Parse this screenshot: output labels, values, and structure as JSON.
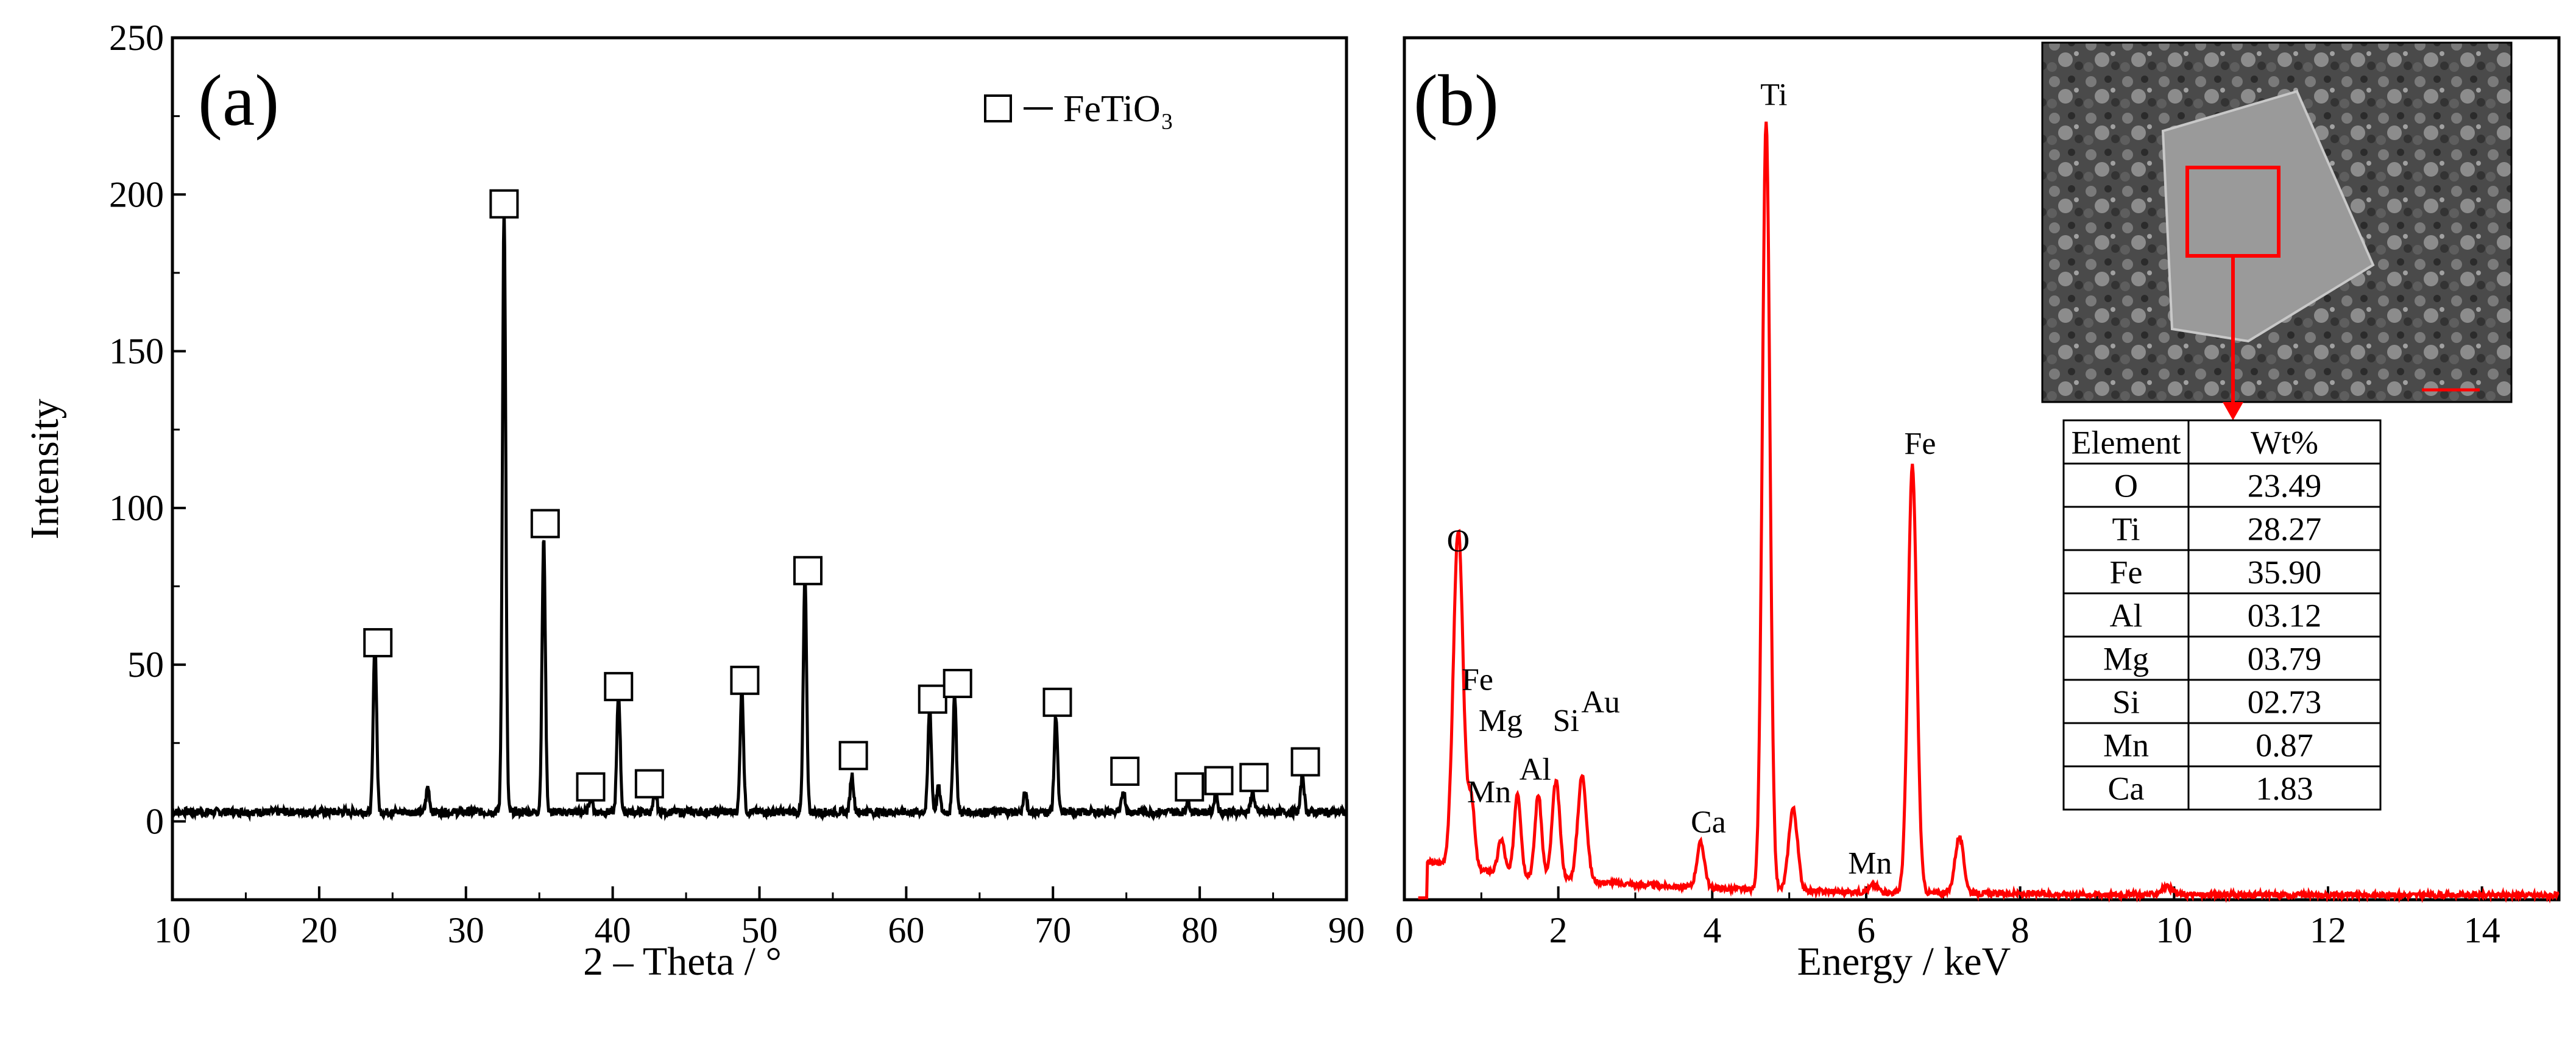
{
  "chart_data": [
    {
      "type": "line",
      "panel_label": "(a)",
      "xlabel": "2 – Theta / °",
      "ylabel": "Intensity",
      "xlim": [
        10,
        90
      ],
      "ylim": [
        -25,
        250
      ],
      "xticks": [
        "10",
        "20",
        "30",
        "40",
        "50",
        "60",
        "70",
        "80",
        "90"
      ],
      "yticks": [
        "0",
        "50",
        "100",
        "150",
        "200",
        "250"
      ],
      "legend": {
        "position": "top-right",
        "entries": [
          {
            "marker": "open-square",
            "label": "FeTiO₃"
          }
        ]
      },
      "baseline": 3,
      "peaks": [
        {
          "x": 23.8,
          "y": 55
        },
        {
          "x": 27.4,
          "y": 8
        },
        {
          "x": 32.6,
          "y": 193
        },
        {
          "x": 35.3,
          "y": 87
        },
        {
          "x": 38.5,
          "y": 5
        },
        {
          "x": 40.4,
          "y": 38
        },
        {
          "x": 42.9,
          "y": 6
        },
        {
          "x": 48.8,
          "y": 40
        },
        {
          "x": 53.1,
          "y": 75
        },
        {
          "x": 56.3,
          "y": 12
        },
        {
          "x": 61.6,
          "y": 34
        },
        {
          "x": 62.2,
          "y": 8
        },
        {
          "x": 63.3,
          "y": 38
        },
        {
          "x": 68.1,
          "y": 6
        },
        {
          "x": 70.2,
          "y": 31
        },
        {
          "x": 74.8,
          "y": 7
        },
        {
          "x": 79.2,
          "y": 4
        },
        {
          "x": 81.1,
          "y": 6
        },
        {
          "x": 83.6,
          "y": 7
        },
        {
          "x": 87.0,
          "y": 12
        }
      ],
      "markers": [
        {
          "x": 24.0,
          "y": 57
        },
        {
          "x": 32.6,
          "y": 197
        },
        {
          "x": 35.4,
          "y": 95
        },
        {
          "x": 38.5,
          "y": 11
        },
        {
          "x": 40.4,
          "y": 43
        },
        {
          "x": 42.5,
          "y": 12
        },
        {
          "x": 49.0,
          "y": 45
        },
        {
          "x": 53.3,
          "y": 80
        },
        {
          "x": 56.4,
          "y": 21
        },
        {
          "x": 61.8,
          "y": 39
        },
        {
          "x": 63.5,
          "y": 44
        },
        {
          "x": 70.3,
          "y": 38
        },
        {
          "x": 74.9,
          "y": 16
        },
        {
          "x": 79.3,
          "y": 11
        },
        {
          "x": 81.3,
          "y": 13
        },
        {
          "x": 83.7,
          "y": 14
        },
        {
          "x": 87.2,
          "y": 19
        }
      ]
    },
    {
      "type": "line",
      "panel_label": "(b)",
      "xlabel": "Energy / keV",
      "xlim": [
        0,
        15
      ],
      "ylim": [
        0,
        230
      ],
      "xticks": [
        "0",
        "2",
        "4",
        "6",
        "8",
        "10",
        "12",
        "14"
      ],
      "line_color": "#ff0000",
      "peaks": [
        {
          "x": 0.7,
          "y": 90,
          "w": 0.09
        },
        {
          "x": 0.87,
          "y": 18,
          "w": 0.06
        },
        {
          "x": 1.26,
          "y": 9,
          "w": 0.06
        },
        {
          "x": 1.47,
          "y": 22,
          "w": 0.06
        },
        {
          "x": 1.74,
          "y": 22,
          "w": 0.06
        },
        {
          "x": 1.97,
          "y": 26,
          "w": 0.07
        },
        {
          "x": 2.31,
          "y": 28,
          "w": 0.08
        },
        {
          "x": 3.85,
          "y": 12,
          "w": 0.07
        },
        {
          "x": 4.7,
          "y": 205,
          "w": 0.07
        },
        {
          "x": 5.05,
          "y": 22,
          "w": 0.08
        },
        {
          "x": 6.1,
          "y": 2,
          "w": 0.08
        },
        {
          "x": 6.6,
          "y": 114,
          "w": 0.08
        },
        {
          "x": 7.21,
          "y": 15,
          "w": 0.08
        },
        {
          "x": 9.9,
          "y": 2,
          "w": 0.1
        }
      ],
      "peak_labels": [
        {
          "text": "O",
          "x": 0.7,
          "y": 93
        },
        {
          "text": "Fe",
          "x": 0.95,
          "y": 56
        },
        {
          "text": "Mg",
          "x": 1.25,
          "y": 45
        },
        {
          "text": "Mn",
          "x": 1.1,
          "y": 26
        },
        {
          "text": "Al",
          "x": 1.7,
          "y": 32
        },
        {
          "text": "Si",
          "x": 2.1,
          "y": 45
        },
        {
          "text": "Au",
          "x": 2.55,
          "y": 50
        },
        {
          "text": "Ca",
          "x": 3.95,
          "y": 18
        },
        {
          "text": "Ti",
          "x": 4.8,
          "y": 212
        },
        {
          "text": "Fe",
          "x": 6.7,
          "y": 119
        },
        {
          "text": "Mn",
          "x": 6.05,
          "y": 7
        }
      ],
      "inset_image": {
        "description_icon": "sem-micrograph-icon"
      },
      "table": {
        "headers": [
          "Element",
          "Wt%"
        ],
        "rows": [
          [
            "O",
            "23.49"
          ],
          [
            "Ti",
            "28.27"
          ],
          [
            "Fe",
            "35.90"
          ],
          [
            "Al",
            "03.12"
          ],
          [
            "Mg",
            "03.79"
          ],
          [
            "Si",
            "02.73"
          ],
          [
            "Mn",
            "0.87"
          ],
          [
            "Ca",
            "1.83"
          ]
        ]
      }
    }
  ]
}
